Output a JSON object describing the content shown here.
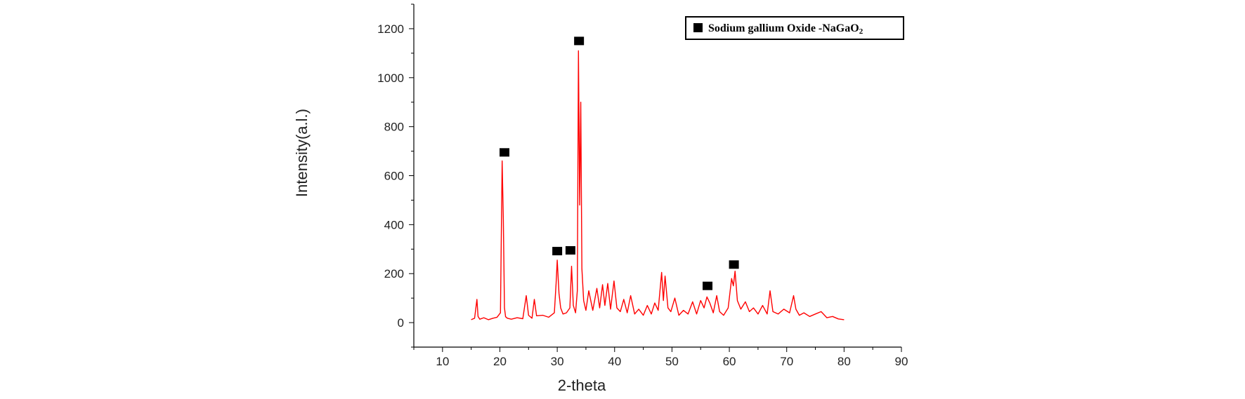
{
  "chart_data": {
    "type": "line",
    "title": "",
    "xlabel": "2-theta",
    "ylabel": "Intensity(a.l.)",
    "xlim": [
      5,
      90
    ],
    "ylim": [
      -100,
      1300
    ],
    "x_ticks": [
      10,
      20,
      30,
      40,
      50,
      60,
      70,
      80,
      90
    ],
    "y_ticks": [
      0,
      200,
      400,
      600,
      800,
      1000,
      1200
    ],
    "grid": false,
    "legend_position": "top-right",
    "colors": {
      "line": "#ff0000",
      "marker": "#000000",
      "axis": "#000000"
    },
    "series": [
      {
        "name": "",
        "color": "#ff0000",
        "x": [
          15,
          15.6,
          16.0,
          16.2,
          16.5,
          17.2,
          18.0,
          18.8,
          19.5,
          20.1,
          20.4,
          20.6,
          20.8,
          21.0,
          21.3,
          22.0,
          23.0,
          24.0,
          24.6,
          25.0,
          25.6,
          26.0,
          26.4,
          27.5,
          28.5,
          29.5,
          29.8,
          30.0,
          30.3,
          30.6,
          31.0,
          31.6,
          32.2,
          32.5,
          32.8,
          33.2,
          33.5,
          33.7,
          33.9,
          34.1,
          34.3,
          34.6,
          35.0,
          35.5,
          36.2,
          36.9,
          37.4,
          37.9,
          38.3,
          38.8,
          39.3,
          39.9,
          40.4,
          41.0,
          41.6,
          42.2,
          42.8,
          43.5,
          44.2,
          45.0,
          45.7,
          46.4,
          47.0,
          47.6,
          48.2,
          48.5,
          48.8,
          49.3,
          49.8,
          50.5,
          51.2,
          52.0,
          52.8,
          53.6,
          54.3,
          55.0,
          55.6,
          56.1,
          56.6,
          57.2,
          57.8,
          58.3,
          59.0,
          59.8,
          60.4,
          60.7,
          61.0,
          61.4,
          62.0,
          62.8,
          63.5,
          64.2,
          65.0,
          65.8,
          66.6,
          67.1,
          67.6,
          68.5,
          69.5,
          70.5,
          71.2,
          71.6,
          72.2,
          73.0,
          74.0,
          75.0,
          76.0,
          77.0,
          78.0,
          79.0,
          80.0
        ],
        "y": [
          12,
          18,
          95,
          25,
          14,
          20,
          12,
          18,
          22,
          40,
          660,
          420,
          60,
          24,
          18,
          14,
          20,
          16,
          110,
          30,
          18,
          95,
          28,
          30,
          22,
          40,
          160,
          255,
          120,
          60,
          35,
          40,
          60,
          230,
          70,
          40,
          130,
          1110,
          480,
          900,
          220,
          90,
          50,
          130,
          50,
          140,
          60,
          155,
          70,
          160,
          55,
          170,
          60,
          45,
          95,
          40,
          110,
          35,
          55,
          30,
          70,
          35,
          80,
          50,
          205,
          90,
          190,
          60,
          45,
          100,
          30,
          50,
          35,
          85,
          35,
          90,
          60,
          105,
          80,
          40,
          110,
          45,
          30,
          60,
          180,
          150,
          210,
          90,
          55,
          85,
          45,
          60,
          35,
          70,
          35,
          130,
          45,
          35,
          55,
          40,
          110,
          55,
          30,
          40,
          25,
          35,
          45,
          20,
          25,
          15,
          12
        ]
      }
    ],
    "peak_markers": [
      {
        "x": 20.8,
        "y": 695
      },
      {
        "x": 30.0,
        "y": 292
      },
      {
        "x": 32.3,
        "y": 295
      },
      {
        "x": 33.8,
        "y": 1150
      },
      {
        "x": 56.2,
        "y": 150
      },
      {
        "x": 60.8,
        "y": 237
      }
    ],
    "legend": [
      {
        "label": "Sodium gallium Oxide -NaGaO",
        "subscript": "2",
        "marker": "filled-square"
      }
    ]
  }
}
